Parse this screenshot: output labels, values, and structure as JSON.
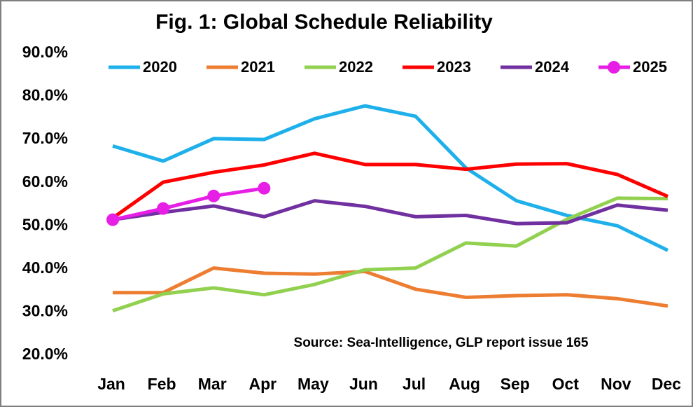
{
  "chart_data": {
    "type": "line",
    "title": "Fig. 1: Global Schedule Reliability",
    "annotation": "Source: Sea-Intelligence, GLP report issue 165",
    "categories": [
      "Jan",
      "Feb",
      "Mar",
      "Apr",
      "May",
      "Jun",
      "Jul",
      "Aug",
      "Sep",
      "Oct",
      "Nov",
      "Dec"
    ],
    "series": [
      {
        "name": "2020",
        "color": "#1eb0ea",
        "values": [
          68.5,
          65.0,
          70.2,
          70.0,
          74.8,
          77.8,
          75.4,
          63.4,
          55.8,
          52.4,
          50.0,
          44.3
        ]
      },
      {
        "name": "2021",
        "color": "#ed7d31",
        "values": [
          34.5,
          34.5,
          40.2,
          39.0,
          38.8,
          39.4,
          35.3,
          33.4,
          33.8,
          34.0,
          33.1,
          31.4
        ]
      },
      {
        "name": "2022",
        "color": "#92d050",
        "values": [
          30.3,
          34.2,
          35.6,
          34.0,
          36.4,
          39.8,
          40.2,
          46.0,
          45.3,
          51.5,
          56.4,
          56.3
        ]
      },
      {
        "name": "2023",
        "color": "#ff0000",
        "values": [
          51.8,
          60.1,
          62.4,
          64.1,
          66.8,
          64.2,
          64.2,
          63.1,
          64.3,
          64.4,
          61.9,
          56.8
        ]
      },
      {
        "name": "2024",
        "color": "#7030a0",
        "values": [
          51.4,
          53.1,
          54.6,
          52.1,
          55.8,
          54.5,
          52.1,
          52.4,
          50.5,
          50.7,
          54.8,
          53.6
        ]
      },
      {
        "name": "2025",
        "color": "#e61ee6",
        "marker": true,
        "values": [
          51.4,
          54.0,
          56.9,
          58.7,
          null,
          null,
          null,
          null,
          null,
          null,
          null,
          null
        ]
      }
    ],
    "ylim": [
      20,
      90
    ],
    "yticks": [
      {
        "value": 20,
        "label": "20.0%"
      },
      {
        "value": 30,
        "label": "30.0%"
      },
      {
        "value": 40,
        "label": "40.0%"
      },
      {
        "value": 50,
        "label": "50.0%"
      },
      {
        "value": 60,
        "label": "60.0%"
      },
      {
        "value": 70,
        "label": "70.0%"
      },
      {
        "value": 80,
        "label": "80.0%"
      },
      {
        "value": 90,
        "label": "90.0%"
      }
    ],
    "grid": false,
    "legend": "top"
  }
}
